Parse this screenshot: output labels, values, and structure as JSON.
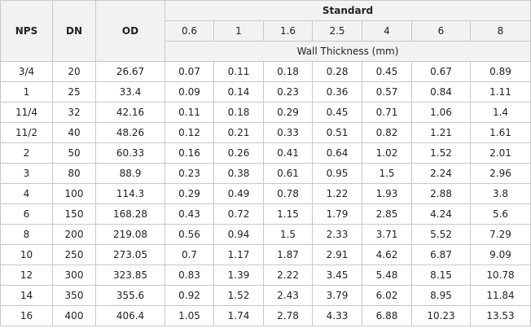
{
  "table": {
    "headers": {
      "nps": "NPS",
      "dn": "DN",
      "od": "OD",
      "standard": "Standard",
      "classes": [
        "0.6",
        "1",
        "1.6",
        "2.5",
        "4",
        "6",
        "8"
      ],
      "wall_thickness": "Wall Thickness (mm)"
    },
    "rows": [
      [
        "3/4",
        "20",
        "26.67",
        "0.07",
        "0.11",
        "0.18",
        "0.28",
        "0.45",
        "0.67",
        "0.89"
      ],
      [
        "1",
        "25",
        "33.4",
        "0.09",
        "0.14",
        "0.23",
        "0.36",
        "0.57",
        "0.84",
        "1.11"
      ],
      [
        "11/4",
        "32",
        "42.16",
        "0.11",
        "0.18",
        "0.29",
        "0.45",
        "0.71",
        "1.06",
        "1.4"
      ],
      [
        "11/2",
        "40",
        "48.26",
        "0.12",
        "0.21",
        "0.33",
        "0.51",
        "0.82",
        "1.21",
        "1.61"
      ],
      [
        "2",
        "50",
        "60.33",
        "0.16",
        "0.26",
        "0.41",
        "0.64",
        "1.02",
        "1.52",
        "2.01"
      ],
      [
        "3",
        "80",
        "88.9",
        "0.23",
        "0.38",
        "0.61",
        "0.95",
        "1.5",
        "2.24",
        "2.96"
      ],
      [
        "4",
        "100",
        "114.3",
        "0.29",
        "0.49",
        "0.78",
        "1.22",
        "1.93",
        "2.88",
        "3.8"
      ],
      [
        "6",
        "150",
        "168.28",
        "0.43",
        "0.72",
        "1.15",
        "1.79",
        "2.85",
        "4.24",
        "5.6"
      ],
      [
        "8",
        "200",
        "219.08",
        "0.56",
        "0.94",
        "1.5",
        "2.33",
        "3.71",
        "5.52",
        "7.29"
      ],
      [
        "10",
        "250",
        "273.05",
        "0.7",
        "1.17",
        "1.87",
        "2.91",
        "4.62",
        "6.87",
        "9.09"
      ],
      [
        "12",
        "300",
        "323.85",
        "0.83",
        "1.39",
        "2.22",
        "3.45",
        "5.48",
        "8.15",
        "10.78"
      ],
      [
        "14",
        "350",
        "355.6",
        "0.92",
        "1.52",
        "2.43",
        "3.79",
        "6.02",
        "8.95",
        "11.84"
      ],
      [
        "16",
        "400",
        "406.4",
        "1.05",
        "1.74",
        "2.78",
        "4.33",
        "6.88",
        "10.23",
        "13.53"
      ]
    ]
  }
}
